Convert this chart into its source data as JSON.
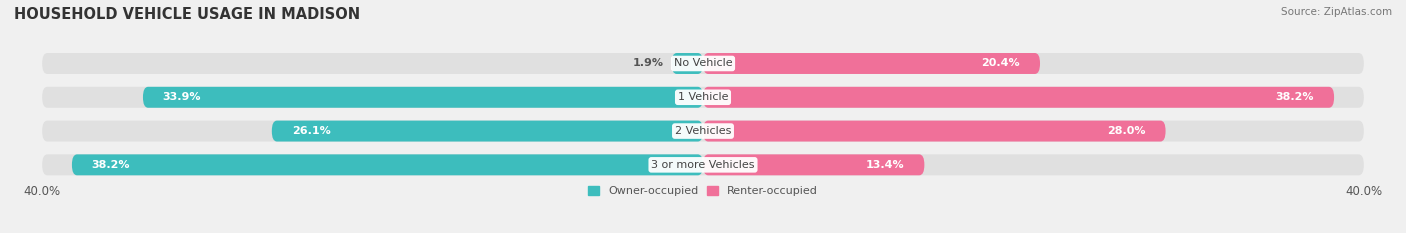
{
  "title": "HOUSEHOLD VEHICLE USAGE IN MADISON",
  "source": "Source: ZipAtlas.com",
  "categories": [
    "No Vehicle",
    "1 Vehicle",
    "2 Vehicles",
    "3 or more Vehicles"
  ],
  "owner_values": [
    1.9,
    33.9,
    26.1,
    38.2
  ],
  "renter_values": [
    20.4,
    38.2,
    28.0,
    13.4
  ],
  "owner_color": "#3dbdbd",
  "renter_color": "#f07099",
  "owner_color_light": "#a8dede",
  "renter_color_light": "#f7b3c8",
  "xlim": 40.0,
  "bar_height": 0.62,
  "background_color": "#f0f0f0",
  "bar_bg_color": "#e0e0e0",
  "title_fontsize": 10.5,
  "source_fontsize": 7.5,
  "label_fontsize": 8,
  "category_fontsize": 8,
  "legend_fontsize": 8,
  "tick_fontsize": 8.5
}
